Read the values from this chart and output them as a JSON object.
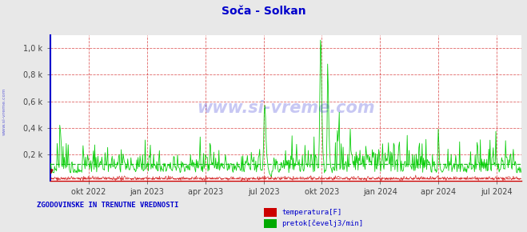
{
  "title": "Soča - Solkan",
  "title_color": "#0000cc",
  "bg_color": "#e8e8e8",
  "plot_bg_color": "#ffffff",
  "grid_color_major": "#cc0000",
  "ylabel_ticks": [
    "0,2 k",
    "0,4 k",
    "0,6 k",
    "0,8 k",
    "1,0 k"
  ],
  "ytick_values": [
    200,
    400,
    600,
    800,
    1000
  ],
  "ylim": [
    0,
    1100
  ],
  "xlabel_ticks": [
    "okt 2022",
    "jan 2023",
    "apr 2023",
    "jul 2023",
    "okt 2023",
    "jan 2024",
    "apr 2024",
    "jul 2024"
  ],
  "tick_positions": [
    60,
    150,
    240,
    330,
    420,
    510,
    600,
    690
  ],
  "left_border_color": "#0000cc",
  "bottom_border_color": "#cc0000",
  "watermark_text": "www.si-vreme.com",
  "watermark_color": "#0000cc",
  "watermark_alpha": 0.22,
  "side_text": "www.si-vreme.com",
  "side_text_color": "#0000cc",
  "legend_title": "ZGODOVINSKE IN TRENUTNE VREDNOSTI",
  "legend_title_color": "#0000cc",
  "legend_items": [
    "temperatura[F]",
    "pretok[čevelj3/min]"
  ],
  "legend_colors": [
    "#cc0000",
    "#00aa00"
  ],
  "pretok_color": "#00cc00",
  "temperatura_color": "#cc0000",
  "pretok_avg_color": "#00aa00",
  "pretok_avg_value": 130,
  "temperatura_avg_value": 8,
  "n_points": 730
}
